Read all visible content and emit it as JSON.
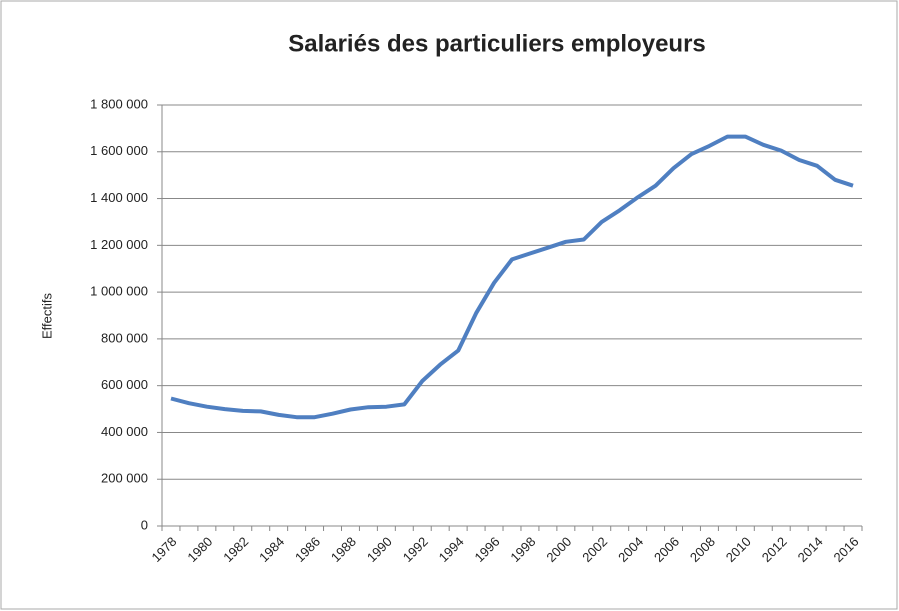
{
  "chart_data": {
    "type": "line",
    "title": "Salariés des particuliers employeurs",
    "y_label": "Effectifs",
    "categories": [
      "1978",
      null,
      "1980",
      null,
      "1982",
      null,
      "1984",
      null,
      "1986",
      null,
      "1988",
      null,
      "1990",
      null,
      "1992",
      null,
      "1994",
      null,
      "1996",
      null,
      "1998",
      null,
      "2000",
      null,
      "2002",
      null,
      "2004",
      null,
      "2006",
      null,
      "2008",
      null,
      "2010",
      null,
      "2012",
      null,
      "2014",
      null,
      "2016"
    ],
    "series": [
      {
        "name": "Effectifs",
        "color": "#4f7fc1",
        "values": [
          545000,
          525000,
          510000,
          500000,
          492000,
          490000,
          475000,
          465000,
          465000,
          480000,
          498000,
          508000,
          510000,
          520000,
          620000,
          690000,
          750000,
          910000,
          1040000,
          1140000,
          1165000,
          1190000,
          1215000,
          1225000,
          1300000,
          1350000,
          1405000,
          1455000,
          1530000,
          1590000,
          1625000,
          1665000,
          1665000,
          1630000,
          1605000,
          1565000,
          1540000,
          1480000,
          1455000
        ]
      }
    ],
    "ylim": [
      0,
      1800000
    ],
    "yticks": [
      0,
      {
        "value": 200000,
        "label": "200 000"
      },
      {
        "value": 400000,
        "label": "400 000"
      },
      {
        "value": 600000,
        "label": "600 000"
      },
      {
        "value": 800000,
        "label": "800 000"
      },
      {
        "value": 1000000,
        "label": "1 000 000"
      },
      {
        "value": 1200000,
        "label": "1 200 000"
      },
      {
        "value": 1400000,
        "label": "1 400 000"
      },
      {
        "value": 1600000,
        "label": "1 600 000"
      },
      {
        "value": 1800000,
        "label": "1 800 000"
      }
    ],
    "grid": true
  }
}
